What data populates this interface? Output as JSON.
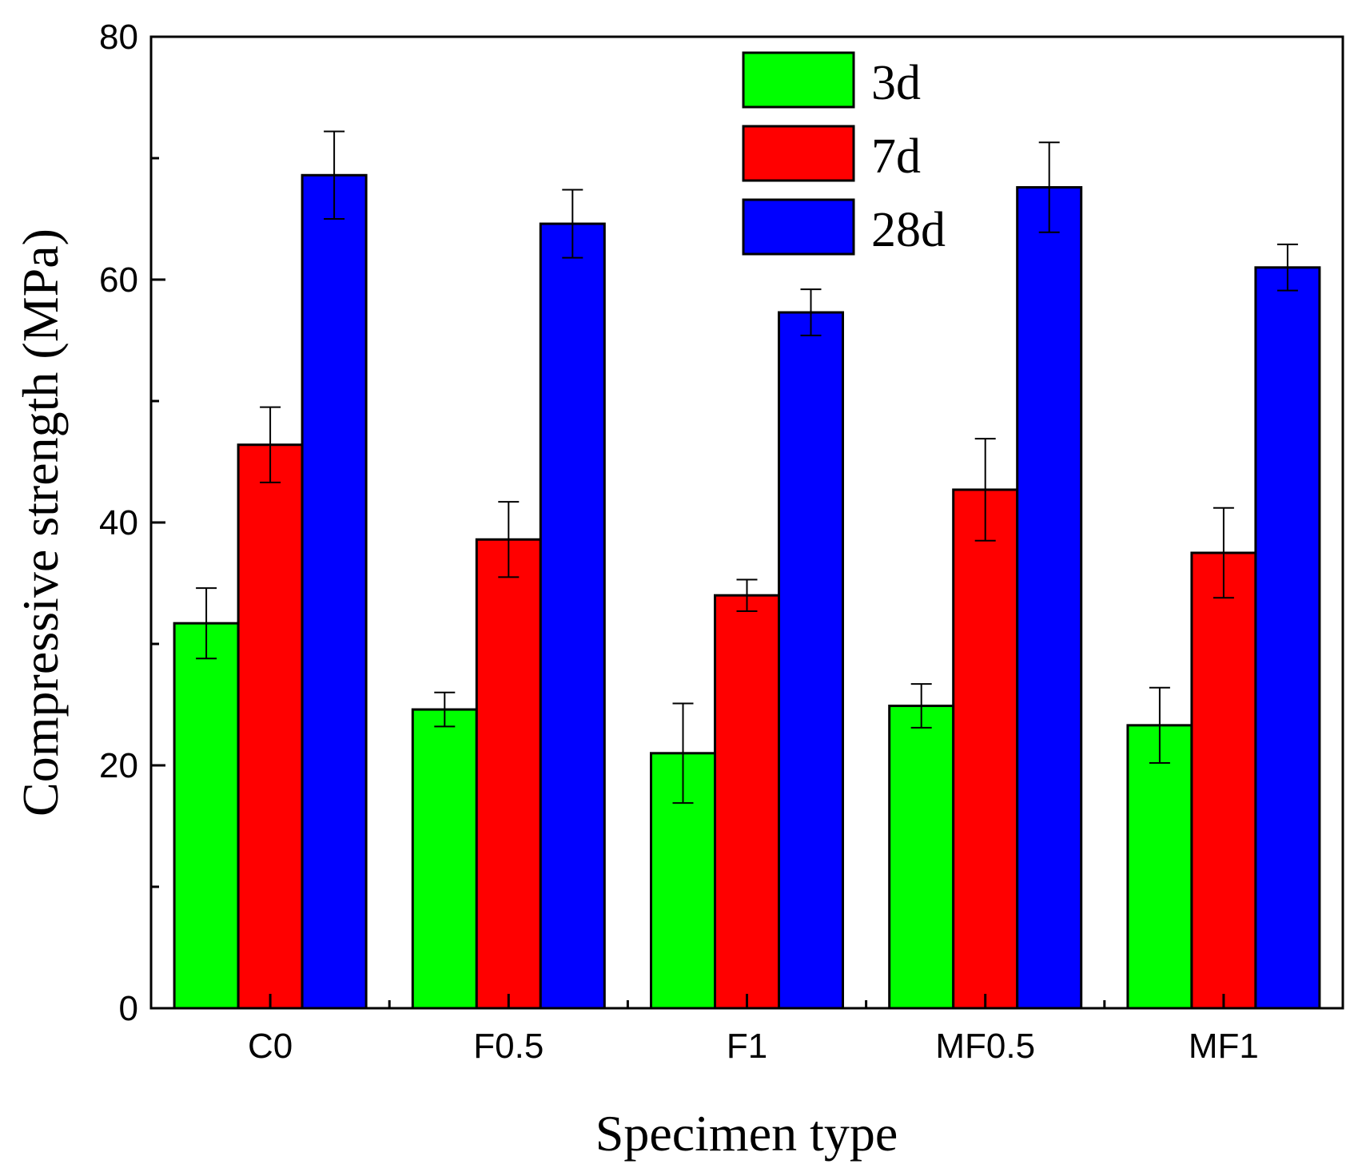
{
  "chart_data": {
    "type": "bar",
    "title": "",
    "xlabel": "Specimen type",
    "ylabel": "Compressive strength (MPa)",
    "ylim": [
      0,
      80
    ],
    "yticks": [
      "0",
      "20",
      "40",
      "60",
      "80"
    ],
    "categories": [
      "C0",
      "F0.5",
      "F1",
      "MF0.5",
      "MF1"
    ],
    "legend_position": "top-right",
    "grid": false,
    "series": [
      {
        "name": "3d",
        "color": "#00ff00",
        "values": [
          31.7,
          24.6,
          21.0,
          24.9,
          23.3
        ],
        "errors": [
          2.9,
          1.4,
          4.1,
          1.8,
          3.1
        ]
      },
      {
        "name": "7d",
        "color": "#ff0000",
        "values": [
          46.4,
          38.6,
          34.0,
          42.7,
          37.5
        ],
        "errors": [
          3.1,
          3.1,
          1.3,
          4.2,
          3.7
        ]
      },
      {
        "name": "28d",
        "color": "#0000ff",
        "values": [
          68.6,
          64.6,
          57.3,
          67.6,
          61.0
        ],
        "errors": [
          3.6,
          2.8,
          1.9,
          3.7,
          1.9
        ]
      }
    ]
  }
}
